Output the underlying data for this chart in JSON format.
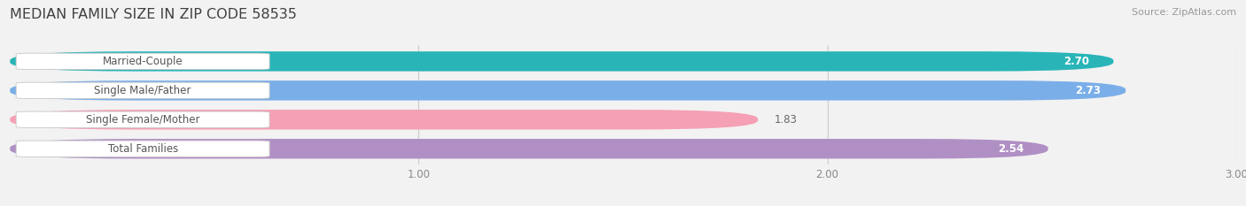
{
  "title": "MEDIAN FAMILY SIZE IN ZIP CODE 58535",
  "source": "Source: ZipAtlas.com",
  "categories": [
    "Married-Couple",
    "Single Male/Father",
    "Single Female/Mother",
    "Total Families"
  ],
  "values": [
    2.7,
    2.73,
    1.83,
    2.54
  ],
  "bar_colors": [
    "#29b5b8",
    "#7aaee8",
    "#f5a0b5",
    "#b090c4"
  ],
  "value_labels": [
    "2.70",
    "2.73",
    "1.83",
    "2.54"
  ],
  "xlim": [
    0,
    3.0
  ],
  "xticks": [
    1.0,
    2.0,
    3.0
  ],
  "xtick_labels": [
    "1.00",
    "2.00",
    "3.00"
  ],
  "bar_height": 0.68,
  "background_color": "#f2f2f2",
  "title_color": "#404040",
  "title_fontsize": 11.5,
  "source_fontsize": 8,
  "label_fontsize": 8.5,
  "value_fontsize": 8.5,
  "tick_fontsize": 8.5,
  "fig_width": 14.06,
  "fig_height": 2.33
}
